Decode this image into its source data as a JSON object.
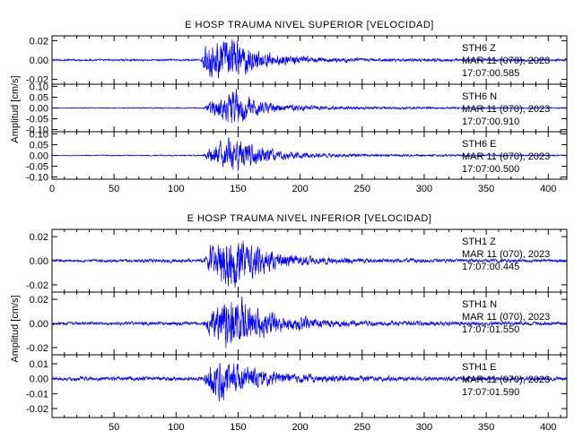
{
  "chart_data": [
    {
      "type": "line",
      "title": "E HOSP TRAUMA NIVEL SUPERIOR [VELOCIDAD]",
      "ylabel": "Amplitud [cm/s]",
      "xlim": [
        0,
        415
      ],
      "x_ticks": [
        "0",
        "50",
        "100",
        "150",
        "200",
        "250",
        "300",
        "350",
        "400"
      ],
      "series_color": "#0000ff",
      "traces": [
        {
          "station": "STH6",
          "component": "Z",
          "date": "MAR 11 (070), 2023",
          "time": "17:07:00.585",
          "ylim": [
            -0.025,
            0.025
          ],
          "y_ticks": [
            "0.02",
            "0.00",
            "-0.02"
          ],
          "y_tick_values": [
            0.02,
            0.0,
            -0.02
          ],
          "envelope": [
            [
              0,
              0.001
            ],
            [
              120,
              0.001
            ],
            [
              124,
              0.016
            ],
            [
              135,
              0.018
            ],
            [
              145,
              0.022
            ],
            [
              160,
              0.012
            ],
            [
              180,
              0.006
            ],
            [
              210,
              0.003
            ],
            [
              260,
              0.0018
            ],
            [
              415,
              0.0012
            ]
          ]
        },
        {
          "station": "STH6",
          "component": "N",
          "date": "MAR 11 (070), 2023",
          "time": "17:07:00.910",
          "ylim": [
            -0.11,
            0.11
          ],
          "y_ticks": [
            "0.10",
            "0.05",
            "0.00",
            "-0.05",
            "-0.10"
          ],
          "y_tick_values": [
            0.1,
            0.05,
            0.0,
            -0.05,
            -0.1
          ],
          "envelope": [
            [
              0,
              0.002
            ],
            [
              122,
              0.003
            ],
            [
              128,
              0.035
            ],
            [
              140,
              0.06
            ],
            [
              146,
              0.09
            ],
            [
              160,
              0.045
            ],
            [
              180,
              0.02
            ],
            [
              210,
              0.01
            ],
            [
              260,
              0.006
            ],
            [
              415,
              0.003
            ]
          ]
        },
        {
          "station": "STH6",
          "component": "E",
          "date": "MAR 11 (070), 2023",
          "time": "17:07:00.500",
          "ylim": [
            -0.11,
            0.11
          ],
          "y_ticks": [
            "0.10",
            "0.05",
            "0.00",
            "-0.05",
            "-0.10"
          ],
          "y_tick_values": [
            0.1,
            0.05,
            0.0,
            -0.05,
            -0.1
          ],
          "envelope": [
            [
              0,
              0.002
            ],
            [
              122,
              0.003
            ],
            [
              128,
              0.04
            ],
            [
              140,
              0.075
            ],
            [
              150,
              0.07
            ],
            [
              165,
              0.04
            ],
            [
              185,
              0.02
            ],
            [
              215,
              0.01
            ],
            [
              260,
              0.006
            ],
            [
              415,
              0.003
            ]
          ]
        }
      ]
    },
    {
      "type": "line",
      "title": "E HOSP TRAUMA NIVEL INFERIOR [VELOCIDAD]",
      "ylabel": "Amplitud [cm/s]",
      "xlim": [
        0,
        415
      ],
      "x_ticks": [
        "50",
        "100",
        "150",
        "200",
        "250",
        "300",
        "350",
        "400"
      ],
      "series_color": "#0000ff",
      "traces": [
        {
          "station": "STH1",
          "component": "Z",
          "date": "MAR 11 (070), 2023",
          "time": "17:07:00.445",
          "ylim": [
            -0.026,
            0.026
          ],
          "y_ticks": [
            "0.02",
            "0.00",
            "-0.02"
          ],
          "y_tick_values": [
            0.02,
            0.0,
            -0.02
          ],
          "envelope": [
            [
              0,
              0.001
            ],
            [
              122,
              0.0015
            ],
            [
              128,
              0.012
            ],
            [
              140,
              0.022
            ],
            [
              150,
              0.02
            ],
            [
              165,
              0.012
            ],
            [
              185,
              0.006
            ],
            [
              215,
              0.003
            ],
            [
              260,
              0.0018
            ],
            [
              415,
              0.0012
            ]
          ]
        },
        {
          "station": "STH1",
          "component": "N",
          "date": "MAR 11 (070), 2023",
          "time": "17:07:01.550",
          "ylim": [
            -0.026,
            0.026
          ],
          "y_ticks": [
            "0.02",
            "0.00",
            "-0.02"
          ],
          "y_tick_values": [
            0.02,
            0.0,
            -0.02
          ],
          "envelope": [
            [
              0,
              0.0012
            ],
            [
              122,
              0.0015
            ],
            [
              128,
              0.012
            ],
            [
              140,
              0.02
            ],
            [
              150,
              0.022
            ],
            [
              165,
              0.013
            ],
            [
              185,
              0.007
            ],
            [
              215,
              0.004
            ],
            [
              260,
              0.002
            ],
            [
              415,
              0.0013
            ]
          ]
        },
        {
          "station": "STH1",
          "component": "E",
          "date": "MAR 11 (070), 2023",
          "time": "17:07:01.590",
          "ylim": [
            -0.026,
            0.016
          ],
          "y_ticks": [
            "0.01",
            "0.00",
            "-0.01",
            "-0.02"
          ],
          "y_tick_values": [
            0.01,
            0.0,
            -0.01,
            -0.02
          ],
          "envelope": [
            [
              0,
              0.0012
            ],
            [
              122,
              0.0015
            ],
            [
              126,
              0.009
            ],
            [
              136,
              0.014
            ],
            [
              146,
              0.011
            ],
            [
              160,
              0.007
            ],
            [
              180,
              0.004
            ],
            [
              215,
              0.0025
            ],
            [
              260,
              0.0018
            ],
            [
              415,
              0.0012
            ]
          ]
        }
      ]
    }
  ]
}
